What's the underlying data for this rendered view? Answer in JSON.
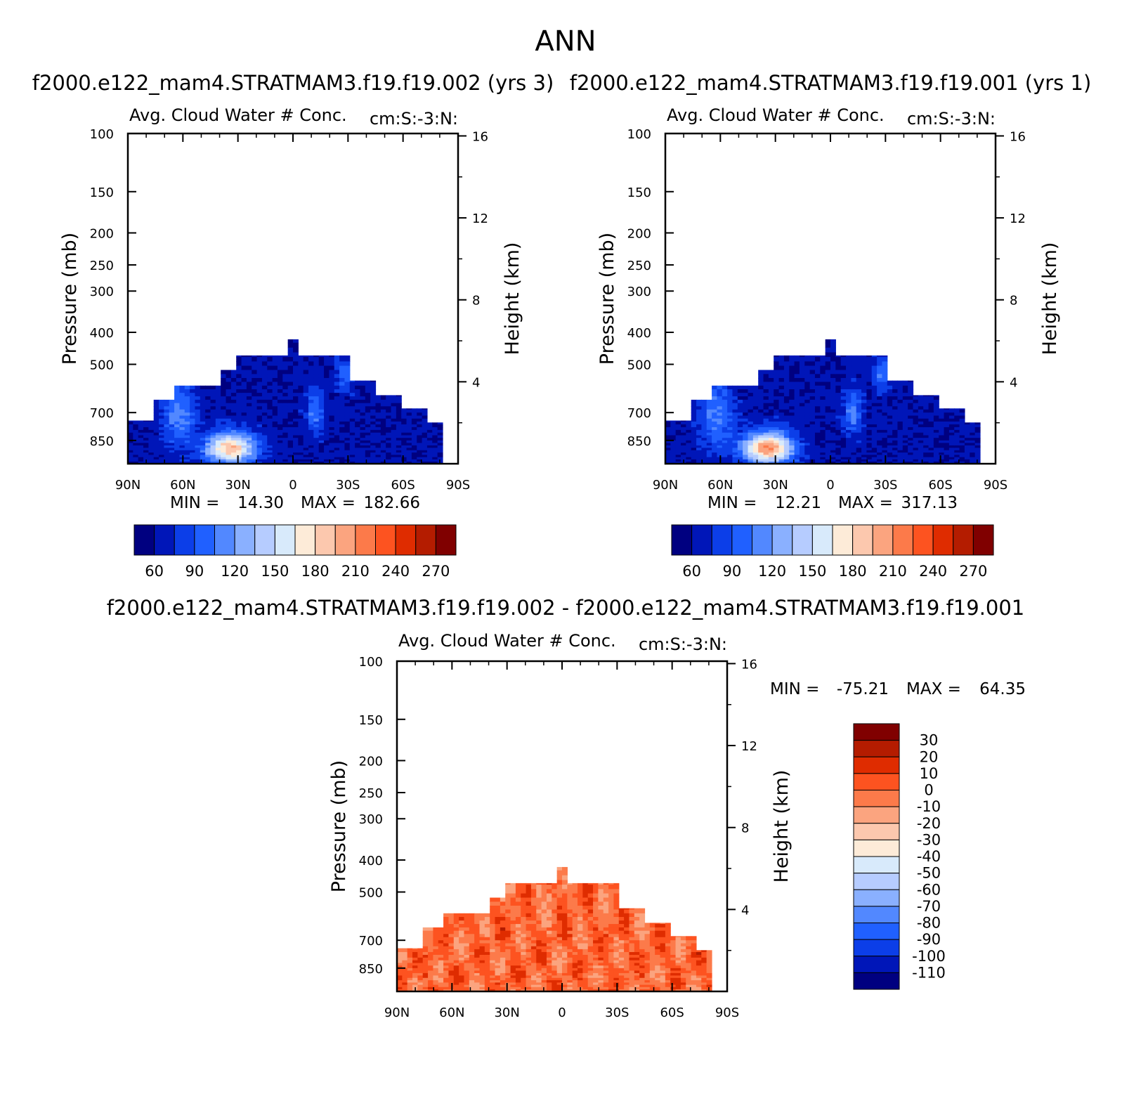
{
  "figure": {
    "title": "ANN"
  },
  "colors": {
    "levels12": [
      "#000080",
      "#0016b8",
      "#0c3ee8",
      "#2060ff",
      "#5288ff",
      "#8ab0ff",
      "#b6ccff",
      "#d8eafb",
      "#fdebd8",
      "#fcc8ae",
      "#fba47f",
      "#fc7a4a",
      "#fd5320",
      "#df2c00",
      "#b41c00",
      "#800000"
    ],
    "diff": [
      "#000080",
      "#0016b8",
      "#0c3ee8",
      "#2060ff",
      "#5288ff",
      "#8ab0ff",
      "#b6ccff",
      "#d8eafb",
      "#fdebd8",
      "#fcc8ae",
      "#fba47f",
      "#fc7a4a",
      "#fd5320",
      "#df2c00",
      "#b41c00",
      "#800000"
    ]
  },
  "chart_data": [
    {
      "type": "heatmap",
      "id": "panel1",
      "title": "f2000.e122_mam4.STRATMAM3.f19.f19.002 (yrs 3)",
      "left_string": "Avg. Cloud Water # Conc.",
      "right_string": "cm:S:-3:N:",
      "ylabel": "Pressure (mb)",
      "ylabel_right": "Height (km)",
      "x_ticks": [
        "90N",
        "60N",
        "30N",
        "0",
        "30S",
        "60S",
        "90S"
      ],
      "y_ticks": [
        "100",
        "150",
        "200",
        "250",
        "300",
        "400",
        "500",
        "700",
        "850"
      ],
      "y_tick_values": [
        100,
        150,
        200,
        250,
        300,
        400,
        500,
        700,
        850
      ],
      "y_right_ticks": [
        "16",
        "12",
        "8",
        "4"
      ],
      "y_right_values": [
        16,
        12,
        8,
        4
      ],
      "min_label": "MIN =",
      "min_value": "14.30",
      "max_label": "MAX =",
      "max_value": "182.66",
      "min": 14.3,
      "max": 182.66,
      "colorbar_labels": [
        "60",
        "90",
        "120",
        "150",
        "180",
        "210",
        "240",
        "270"
      ],
      "contour_levels": [
        45,
        60,
        75,
        90,
        105,
        120,
        135,
        150,
        165,
        180,
        195,
        210,
        225,
        240,
        255,
        270
      ]
    },
    {
      "type": "heatmap",
      "id": "panel2",
      "title": "f2000.e122_mam4.STRATMAM3.f19.f19.001 (yrs 1)",
      "left_string": "Avg. Cloud Water # Conc.",
      "right_string": "cm:S:-3:N:",
      "ylabel": "Pressure (mb)",
      "ylabel_right": "Height (km)",
      "x_ticks": [
        "90N",
        "60N",
        "30N",
        "0",
        "30S",
        "60S",
        "90S"
      ],
      "y_ticks": [
        "100",
        "150",
        "200",
        "250",
        "300",
        "400",
        "500",
        "700",
        "850"
      ],
      "y_tick_values": [
        100,
        150,
        200,
        250,
        300,
        400,
        500,
        700,
        850
      ],
      "y_right_ticks": [
        "16",
        "12",
        "8",
        "4"
      ],
      "y_right_values": [
        16,
        12,
        8,
        4
      ],
      "min_label": "MIN =",
      "min_value": "12.21",
      "max_label": "MAX =",
      "max_value": "317.13",
      "min": 12.21,
      "max": 317.13,
      "colorbar_labels": [
        "60",
        "90",
        "120",
        "150",
        "180",
        "210",
        "240",
        "270"
      ],
      "contour_levels": [
        45,
        60,
        75,
        90,
        105,
        120,
        135,
        150,
        165,
        180,
        195,
        210,
        225,
        240,
        255,
        270
      ]
    },
    {
      "type": "heatmap",
      "id": "panel3",
      "title": "f2000.e122_mam4.STRATMAM3.f19.f19.002 - f2000.e122_mam4.STRATMAM3.f19.f19.001",
      "left_string": "Avg. Cloud Water # Conc.",
      "right_string": "cm:S:-3:N:",
      "ylabel": "Pressure (mb)",
      "ylabel_right": "Height (km)",
      "x_ticks": [
        "90N",
        "60N",
        "30N",
        "0",
        "30S",
        "60S",
        "90S"
      ],
      "y_ticks": [
        "100",
        "150",
        "200",
        "250",
        "300",
        "400",
        "500",
        "700",
        "850"
      ],
      "y_tick_values": [
        100,
        150,
        200,
        250,
        300,
        400,
        500,
        700,
        850
      ],
      "y_right_ticks": [
        "16",
        "12",
        "8",
        "4"
      ],
      "y_right_values": [
        16,
        12,
        8,
        4
      ],
      "min_label": "MIN =",
      "min_value": "-75.21",
      "max_label": "MAX =",
      "max_value": "64.35",
      "min": -75.21,
      "max": 64.35,
      "colorbar_labels": [
        "30",
        "20",
        "10",
        "0",
        "-10",
        "-20",
        "-30",
        "-40",
        "-50",
        "-60",
        "-70",
        "-80",
        "-90",
        "-100",
        "-110"
      ],
      "contour_levels": [
        -110,
        -100,
        -90,
        -80,
        -70,
        -60,
        -50,
        -40,
        -30,
        -20,
        -10,
        0,
        10,
        20,
        30
      ]
    }
  ]
}
